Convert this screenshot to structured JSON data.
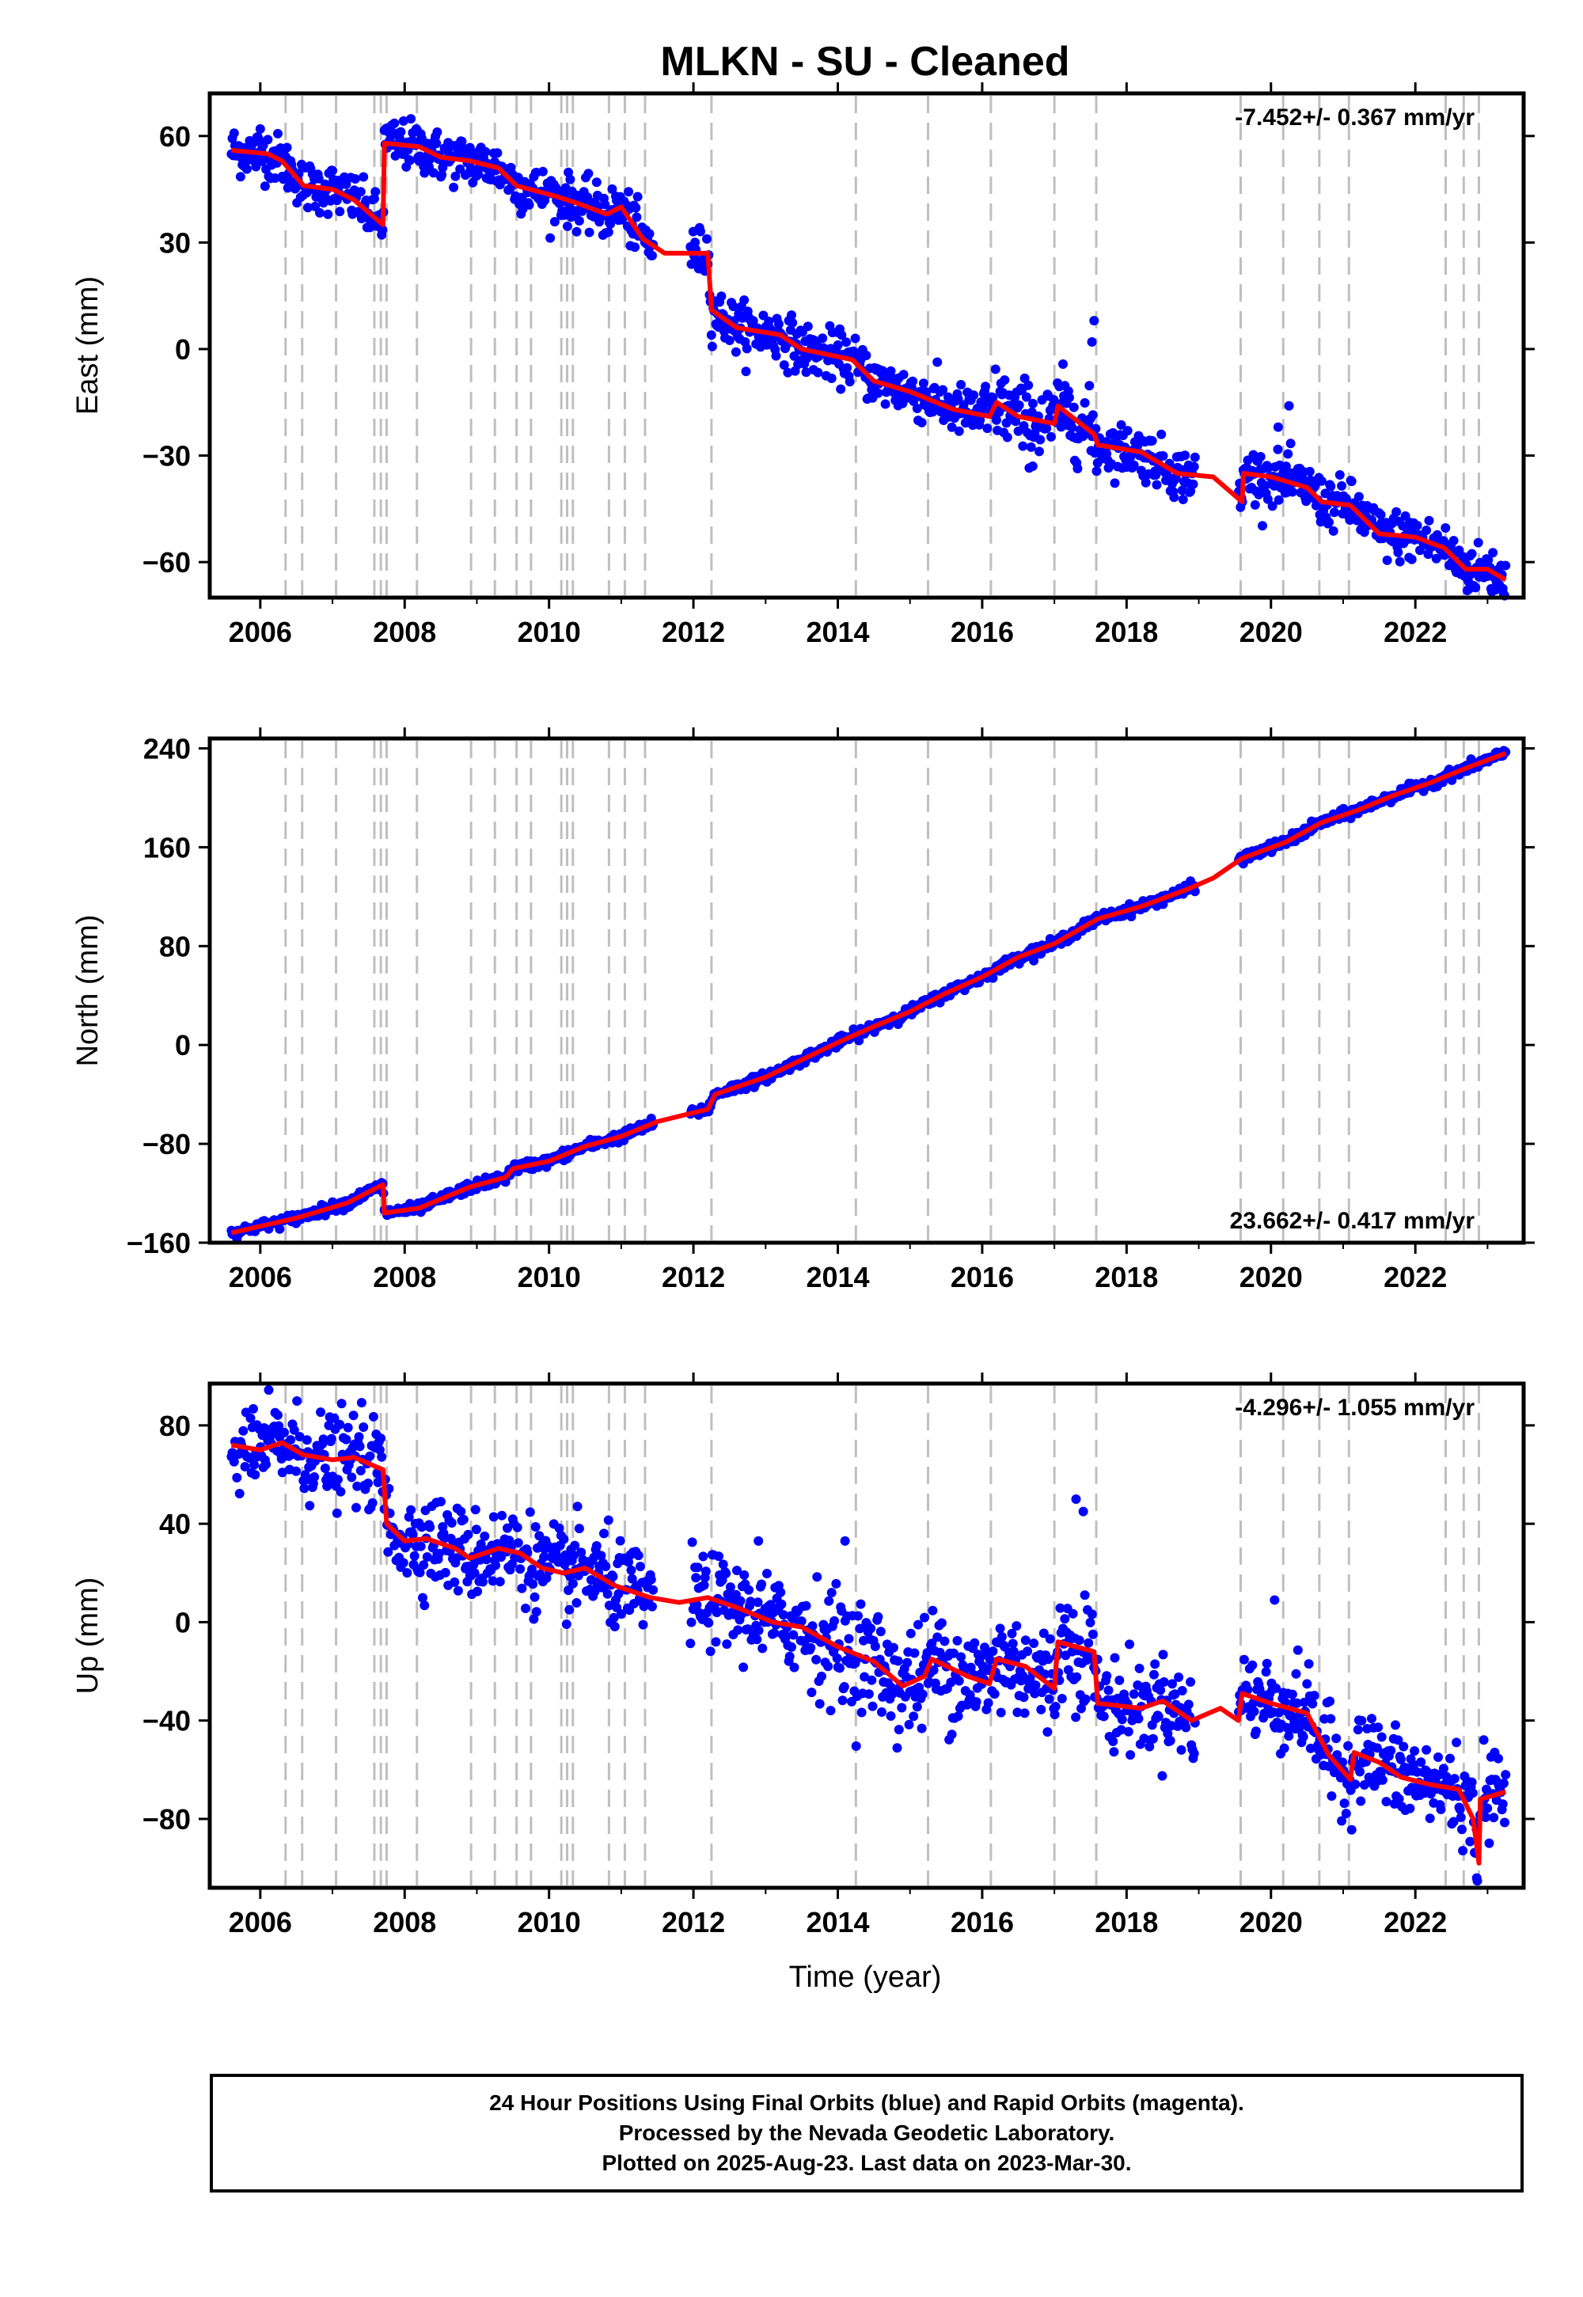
{
  "title": "MLKN  - SU - Cleaned",
  "xlabel": "Time (year)",
  "colors": {
    "points": "#0000ff",
    "model": "#ff0000",
    "steps": "#bfbfbf",
    "frame": "#000000"
  },
  "footer": {
    "line1": "24 Hour Positions Using Final Orbits (blue) and Rapid Orbits (magenta).",
    "line2": "Processed by the Nevada Geodetic Laboratory.",
    "line3": "Plotted on 2025-Aug-23. Last data on 2023-Mar-30."
  },
  "x_ticks": [
    "2006",
    "2008",
    "2010",
    "2012",
    "2014",
    "2016",
    "2018",
    "2020",
    "2022"
  ],
  "step_years": [
    2006.35,
    2006.58,
    2007.05,
    2007.58,
    2007.67,
    2007.75,
    2008.17,
    2008.92,
    2009.25,
    2009.55,
    2009.75,
    2010.17,
    2010.25,
    2010.33,
    2010.83,
    2011.05,
    2011.33,
    2012.25,
    2014.25,
    2015.25,
    2016.12,
    2017.0,
    2017.58,
    2019.58,
    2020.17,
    2020.67,
    2021.08,
    2022.42,
    2022.67,
    2022.88
  ],
  "chart_data": [
    {
      "type": "scatter",
      "name": "east",
      "ylabel": "East (mm)",
      "ylim": [
        -70,
        72
      ],
      "yticks": [
        "60",
        "30",
        "0",
        "−30",
        "−60"
      ],
      "ytick_values": [
        60,
        30,
        0,
        -30,
        -60
      ],
      "xlim": [
        2005.3,
        2023.5
      ],
      "rate_label": "-7.452+/- 0.367 mm/yr",
      "rate_position": "top-right",
      "noise": 3.5,
      "outliers": [
        [
          2017.55,
          8
        ],
        [
          2017.52,
          2
        ],
        [
          2020.25,
          -16
        ],
        [
          2020.1,
          -22
        ],
        [
          2016.7,
          -33
        ],
        [
          2006.0,
          62
        ]
      ],
      "model": [
        [
          2005.6,
          56
        ],
        [
          2006.1,
          55
        ],
        [
          2006.3,
          53
        ],
        [
          2006.6,
          46
        ],
        [
          2007.0,
          45
        ],
        [
          2007.3,
          42
        ],
        [
          2007.7,
          35
        ],
        [
          2007.72,
          58
        ],
        [
          2008.2,
          57
        ],
        [
          2008.5,
          54
        ],
        [
          2008.9,
          53
        ],
        [
          2009.3,
          51
        ],
        [
          2009.55,
          46
        ],
        [
          2010.1,
          43
        ],
        [
          2010.4,
          41
        ],
        [
          2010.8,
          38
        ],
        [
          2011.0,
          40
        ],
        [
          2011.3,
          31
        ],
        [
          2011.6,
          27
        ],
        [
          2012.2,
          27
        ],
        [
          2012.25,
          11
        ],
        [
          2012.6,
          6
        ],
        [
          2013.2,
          4
        ],
        [
          2013.5,
          0
        ],
        [
          2014.2,
          -3
        ],
        [
          2014.5,
          -9
        ],
        [
          2015.0,
          -12
        ],
        [
          2015.6,
          -17
        ],
        [
          2016.1,
          -19
        ],
        [
          2016.2,
          -15
        ],
        [
          2016.5,
          -19
        ],
        [
          2017.0,
          -21
        ],
        [
          2017.05,
          -16
        ],
        [
          2017.55,
          -24
        ],
        [
          2017.6,
          -27
        ],
        [
          2018.2,
          -29
        ],
        [
          2018.7,
          -35
        ],
        [
          2019.2,
          -36
        ],
        [
          2019.6,
          -43
        ],
        [
          2019.62,
          -35
        ],
        [
          2020.0,
          -36
        ],
        [
          2020.5,
          -39
        ],
        [
          2020.7,
          -43
        ],
        [
          2021.1,
          -44
        ],
        [
          2021.5,
          -52
        ],
        [
          2022.0,
          -53
        ],
        [
          2022.4,
          -56
        ],
        [
          2022.7,
          -62
        ],
        [
          2023.0,
          -62
        ],
        [
          2023.25,
          -65
        ]
      ]
    },
    {
      "type": "scatter",
      "name": "north",
      "ylabel": "North (mm)",
      "ylim": [
        -160,
        248
      ],
      "yticks": [
        "240",
        "160",
        "80",
        "0",
        "−80",
        "−160"
      ],
      "ytick_values": [
        240,
        160,
        80,
        0,
        -80,
        -160
      ],
      "xlim": [
        2005.3,
        2023.5
      ],
      "rate_label": "23.662+/- 0.417 mm/yr",
      "rate_position": "bottom-right",
      "noise": 2.0,
      "outliers": [],
      "model": [
        [
          2005.6,
          -152
        ],
        [
          2006.5,
          -140
        ],
        [
          2007.2,
          -128
        ],
        [
          2007.7,
          -113
        ],
        [
          2007.72,
          -136
        ],
        [
          2008.2,
          -132
        ],
        [
          2008.9,
          -115
        ],
        [
          2009.4,
          -107
        ],
        [
          2009.5,
          -100
        ],
        [
          2010.0,
          -94
        ],
        [
          2010.5,
          -82
        ],
        [
          2011.0,
          -74
        ],
        [
          2011.5,
          -62
        ],
        [
          2012.2,
          -52
        ],
        [
          2012.3,
          -40
        ],
        [
          2013.0,
          -26
        ],
        [
          2013.5,
          -12
        ],
        [
          2014.0,
          2
        ],
        [
          2014.5,
          15
        ],
        [
          2015.0,
          27
        ],
        [
          2015.5,
          42
        ],
        [
          2016.0,
          55
        ],
        [
          2016.5,
          71
        ],
        [
          2017.0,
          82
        ],
        [
          2017.6,
          102
        ],
        [
          2018.2,
          112
        ],
        [
          2018.8,
          125
        ],
        [
          2019.2,
          135
        ],
        [
          2019.6,
          151
        ],
        [
          2020.2,
          164
        ],
        [
          2020.7,
          180
        ],
        [
          2021.2,
          190
        ],
        [
          2021.7,
          202
        ],
        [
          2022.2,
          212
        ],
        [
          2022.7,
          224
        ],
        [
          2023.25,
          236
        ]
      ]
    },
    {
      "type": "scatter",
      "name": "up",
      "ylabel": "Up (mm)",
      "ylim": [
        -108,
        97
      ],
      "yticks": [
        "80",
        "40",
        "0",
        "−40",
        "−80"
      ],
      "ytick_values": [
        80,
        40,
        0,
        -40,
        -80
      ],
      "xlim": [
        2005.3,
        2023.5
      ],
      "rate_label": "-4.296+/- 1.055 mm/yr",
      "rate_position": "top-right",
      "noise": 9.0,
      "outliers": [
        [
          2017.3,
          50
        ],
        [
          2017.4,
          45
        ],
        [
          2022.85,
          -104
        ],
        [
          2020.05,
          9
        ],
        [
          2012.9,
          33
        ],
        [
          2014.1,
          33
        ]
      ],
      "model": [
        [
          2005.6,
          72
        ],
        [
          2006.0,
          70
        ],
        [
          2006.3,
          73
        ],
        [
          2006.6,
          68
        ],
        [
          2007.0,
          66
        ],
        [
          2007.3,
          67
        ],
        [
          2007.7,
          62
        ],
        [
          2007.75,
          40
        ],
        [
          2008.0,
          33
        ],
        [
          2008.3,
          34
        ],
        [
          2008.7,
          30
        ],
        [
          2008.9,
          26
        ],
        [
          2009.3,
          30
        ],
        [
          2009.6,
          28
        ],
        [
          2009.9,
          22
        ],
        [
          2010.2,
          20
        ],
        [
          2010.5,
          22
        ],
        [
          2010.9,
          15
        ],
        [
          2011.1,
          13
        ],
        [
          2011.4,
          10
        ],
        [
          2011.8,
          8
        ],
        [
          2012.2,
          10
        ],
        [
          2012.6,
          6
        ],
        [
          2013.1,
          0
        ],
        [
          2013.5,
          -2
        ],
        [
          2014.0,
          -10
        ],
        [
          2014.5,
          -16
        ],
        [
          2014.9,
          -26
        ],
        [
          2015.2,
          -22
        ],
        [
          2015.3,
          -15
        ],
        [
          2015.8,
          -22
        ],
        [
          2016.1,
          -25
        ],
        [
          2016.2,
          -15
        ],
        [
          2016.6,
          -18
        ],
        [
          2017.0,
          -27
        ],
        [
          2017.05,
          -8
        ],
        [
          2017.55,
          -12
        ],
        [
          2017.6,
          -33
        ],
        [
          2018.2,
          -35
        ],
        [
          2018.5,
          -32
        ],
        [
          2018.9,
          -40
        ],
        [
          2019.3,
          -35
        ],
        [
          2019.55,
          -40
        ],
        [
          2019.6,
          -29
        ],
        [
          2020.0,
          -33
        ],
        [
          2020.5,
          -37
        ],
        [
          2020.8,
          -54
        ],
        [
          2021.1,
          -64
        ],
        [
          2021.15,
          -53
        ],
        [
          2021.5,
          -57
        ],
        [
          2021.8,
          -63
        ],
        [
          2022.2,
          -66
        ],
        [
          2022.6,
          -68
        ],
        [
          2022.8,
          -80
        ],
        [
          2022.88,
          -98
        ],
        [
          2022.9,
          -72
        ],
        [
          2023.25,
          -69
        ]
      ]
    }
  ]
}
